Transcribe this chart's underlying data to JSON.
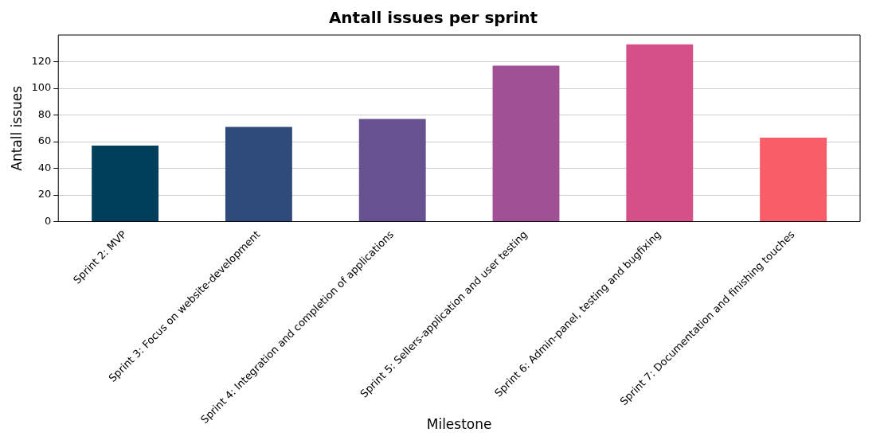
{
  "chart_data": {
    "type": "bar",
    "title": "Antall issues per sprint",
    "xlabel": "Milestone",
    "ylabel": "Antall issues",
    "categories": [
      "Sprint 2: MVP",
      "Sprint 3: Focus on website-development",
      "Sprint 4: Integration and completion of applications",
      "Sprint 5: Sellers-application and user testing",
      "Sprint 6: Admin-panel, testing and bugfixing",
      "Sprint 7: Documentation and finishing touches"
    ],
    "values": [
      57,
      71,
      77,
      117,
      133,
      63
    ],
    "colors": [
      "#003f5c",
      "#2f4b7c",
      "#665191",
      "#a05195",
      "#d45087",
      "#f95d6a"
    ],
    "ylim": [
      0,
      140
    ],
    "yticks": [
      0,
      20,
      40,
      60,
      80,
      100,
      120
    ],
    "grid": "y"
  }
}
